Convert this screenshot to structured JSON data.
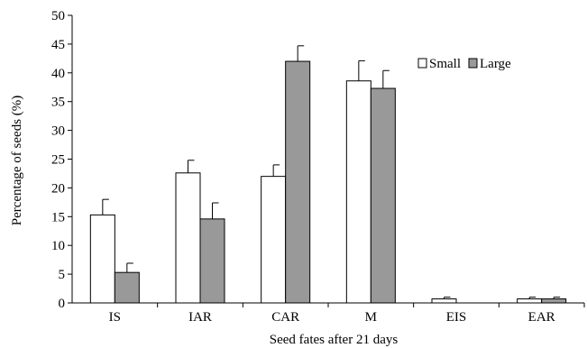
{
  "chart_data": {
    "type": "bar",
    "title": "",
    "xlabel": "Seed fates after 21 days",
    "ylabel": "Percentage of seeds (%)",
    "ylim": [
      0,
      50
    ],
    "yticks": [
      0,
      5,
      10,
      15,
      20,
      25,
      30,
      35,
      40,
      45,
      50
    ],
    "grid": false,
    "legend_position": "top-right",
    "categories": [
      "IS",
      "IAR",
      "CAR",
      "M",
      "EIS",
      "EAR"
    ],
    "series": [
      {
        "name": "Small",
        "color": "#ffffff",
        "values": [
          15.3,
          22.6,
          22.0,
          38.6,
          0.7,
          0.7
        ],
        "errors": [
          2.7,
          2.2,
          2.0,
          3.5,
          0.3,
          0.3
        ]
      },
      {
        "name": "Large",
        "color": "#999999",
        "values": [
          5.3,
          14.6,
          42.0,
          37.3,
          0,
          0.7
        ],
        "errors": [
          1.6,
          2.8,
          2.7,
          3.1,
          0,
          0.3
        ]
      }
    ]
  }
}
